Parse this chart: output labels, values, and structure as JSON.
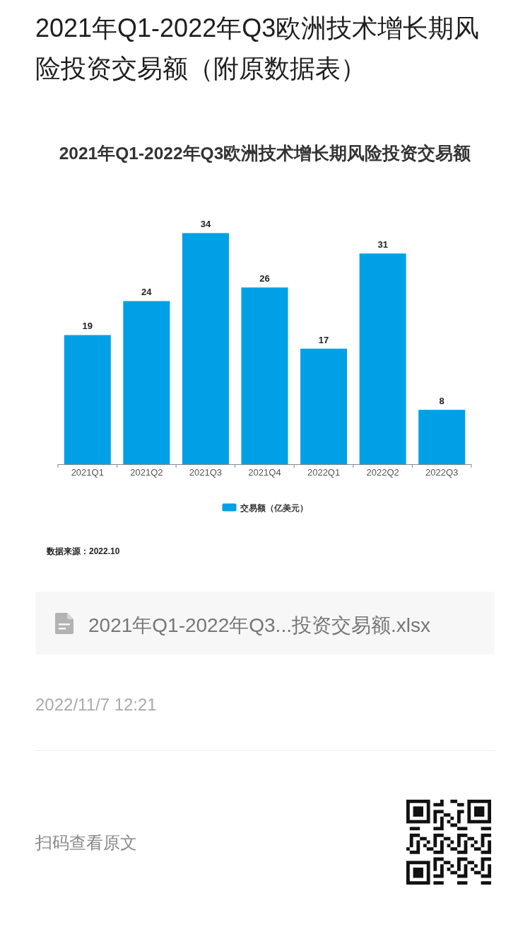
{
  "chart_data": {
    "type": "bar",
    "title": "2021年Q1-2022年Q3欧洲技术增长期风险投资交易额（附原数据表）",
    "subtitle": "2021年Q1-2022年Q3欧洲技术增长期风险投资交易额",
    "categories": [
      "2021Q1",
      "2021Q2",
      "2021Q3",
      "2021Q4",
      "2022Q1",
      "2022Q2",
      "2022Q3"
    ],
    "series": [
      {
        "name": "交易额（亿美元）",
        "color": "#00a0e6",
        "values": [
          19,
          24,
          34,
          26,
          17,
          31,
          8
        ]
      }
    ],
    "data_labels": true,
    "legend": "bottom",
    "tick_labels": "x",
    "annotations": [
      "数据来源：2022.10",
      "2021年Q1-2022年Q3...投资交易额.xlsx",
      "2022/11/7 12:21",
      "扫码查看原文"
    ]
  }
}
